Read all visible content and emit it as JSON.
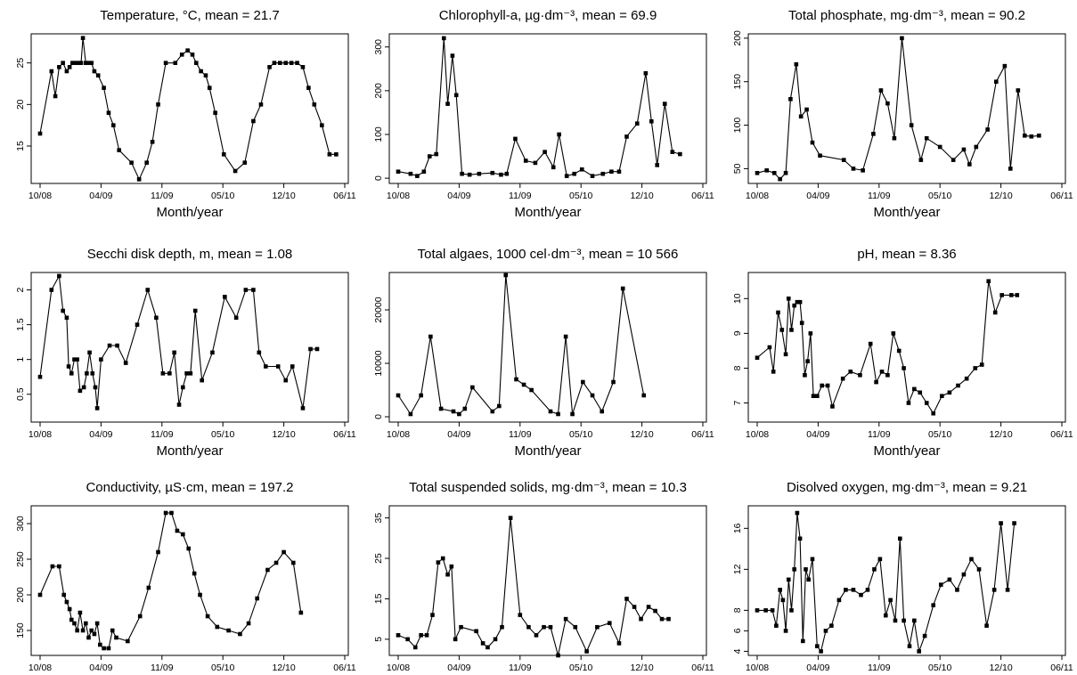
{
  "panels": [
    {
      "title": "Temperature, °C, mean = 21.7",
      "xlabel": "Month/year"
    },
    {
      "title": "Chlorophyll-a, µg·dm⁻³, mean = 69.9",
      "xlabel": "Month/year"
    },
    {
      "title": "Total phosphate, mg·dm⁻³, mean = 90.2",
      "xlabel": "Month/year"
    },
    {
      "title": "Secchi disk depth, m, mean = 1.08",
      "xlabel": "Month/year"
    },
    {
      "title": "Total algaes, 1000 cel·dm⁻³, mean = 10 566",
      "xlabel": "Month/year"
    },
    {
      "title": "pH, mean = 8.36",
      "xlabel": "Month/year"
    },
    {
      "title": "Conductivity, µS·cm, mean = 197.2",
      "xlabel": "Month/year"
    },
    {
      "title": "Total suspended solids, mg·dm⁻³, mean = 10.3",
      "xlabel": "Month/year"
    },
    {
      "title": "Disolved oxygen, mg·dm⁻³, mean = 9.21",
      "xlabel": "Month/year"
    }
  ],
  "chart_data": [
    {
      "type": "line",
      "title": "Temperature, °C, mean = 21.7",
      "xlabel": "Month/year",
      "xticks": [
        "10/08",
        "04/09",
        "11/09",
        "05/10",
        "12/10",
        "06/11"
      ],
      "yticks": [
        15,
        20,
        25
      ],
      "xlim": [
        0,
        32
      ],
      "ylim": [
        10.5,
        28.5
      ],
      "x": [
        0.0,
        1.2,
        1.6,
        2.0,
        2.4,
        2.8,
        3.1,
        3.4,
        3.7,
        4.0,
        4.3,
        4.5,
        4.8,
        5.1,
        5.4,
        5.7,
        6.1,
        6.7,
        7.2,
        7.7,
        8.3,
        9.6,
        10.4,
        11.2,
        11.8,
        12.4,
        13.2,
        14.2,
        14.9,
        15.5,
        16.0,
        16.4,
        16.9,
        17.4,
        17.8,
        18.4,
        19.3,
        20.5,
        21.5,
        22.4,
        23.2,
        24.1,
        24.6,
        25.2,
        25.8,
        26.4,
        27.0,
        27.6,
        28.2,
        28.8,
        29.6,
        30.4,
        31.1
      ],
      "y": [
        16.5,
        24,
        21,
        24.5,
        25,
        24,
        24.5,
        25,
        25,
        25,
        25,
        28,
        25,
        25,
        25,
        24,
        23.5,
        22,
        19,
        17.5,
        14.5,
        13,
        11,
        13,
        15.5,
        20,
        25,
        25,
        26,
        26.5,
        26,
        25,
        24,
        23.5,
        22,
        19,
        14,
        12,
        13,
        18,
        20,
        24.5,
        25,
        25,
        25,
        25,
        25,
        24.5,
        22,
        20,
        17.5,
        14,
        14
      ]
    },
    {
      "type": "line",
      "title": "Chlorophyll-a, µg·dm⁻³, mean = 69.9",
      "xlabel": "Month/year",
      "xticks": [
        "10/08",
        "04/09",
        "11/09",
        "05/10",
        "12/10",
        "06/11"
      ],
      "yticks": [
        0,
        100,
        200,
        300
      ],
      "xlim": [
        0,
        32
      ],
      "ylim": [
        -12,
        330
      ],
      "x": [
        0.0,
        1.3,
        2.0,
        2.7,
        3.3,
        4.0,
        4.8,
        5.2,
        5.7,
        6.1,
        6.7,
        7.5,
        8.5,
        9.9,
        10.8,
        11.4,
        12.3,
        13.4,
        14.4,
        15.4,
        16.3,
        16.9,
        17.7,
        18.5,
        19.3,
        20.4,
        21.5,
        22.4,
        23.2,
        24.0,
        25.1,
        26.0,
        26.6,
        27.2,
        28.0,
        28.8,
        29.6
      ],
      "y": [
        15,
        10,
        5,
        15,
        50,
        55,
        320,
        170,
        280,
        190,
        10,
        8,
        10,
        12,
        8,
        10,
        90,
        40,
        35,
        60,
        25,
        100,
        5,
        10,
        20,
        5,
        10,
        15,
        15,
        95,
        125,
        240,
        130,
        30,
        170,
        60,
        55
      ]
    },
    {
      "type": "line",
      "title": "Total phosphate, mg·dm⁻³, mean = 90.2",
      "xlabel": "Month/year",
      "xticks": [
        "10/08",
        "04/09",
        "11/09",
        "05/10",
        "12/10",
        "06/11"
      ],
      "yticks": [
        50,
        100,
        150,
        200
      ],
      "xlim": [
        0,
        32
      ],
      "ylim": [
        33,
        205
      ],
      "x": [
        0.0,
        1.0,
        1.8,
        2.4,
        3.0,
        3.5,
        4.1,
        4.6,
        5.2,
        5.8,
        6.6,
        9.1,
        10.1,
        11.1,
        12.2,
        13.0,
        13.7,
        14.4,
        15.2,
        16.2,
        17.2,
        17.8,
        19.2,
        20.6,
        21.7,
        22.3,
        23.0,
        24.2,
        25.1,
        26.0,
        26.6,
        27.4,
        28.1,
        28.8,
        29.6
      ],
      "y": [
        45,
        48,
        45,
        38,
        45,
        130,
        170,
        110,
        118,
        80,
        65,
        60,
        50,
        48,
        90,
        140,
        125,
        85,
        200,
        100,
        60,
        85,
        75,
        60,
        72,
        55,
        75,
        95,
        150,
        168,
        50,
        140,
        88,
        87,
        88
      ]
    },
    {
      "type": "line",
      "title": "Secchi disk depth, m, mean = 1.08",
      "xlabel": "Month/year",
      "xticks": [
        "10/08",
        "04/09",
        "11/09",
        "05/10",
        "12/10",
        "06/11"
      ],
      "yticks": [
        0.5,
        1.0,
        1.5,
        2.0
      ],
      "xlim": [
        0,
        32
      ],
      "ylim": [
        0.1,
        2.25
      ],
      "x": [
        0.0,
        1.2,
        2.0,
        2.4,
        2.8,
        3.0,
        3.3,
        3.6,
        3.9,
        4.2,
        4.6,
        4.9,
        5.2,
        5.5,
        5.8,
        6.0,
        6.4,
        7.3,
        8.1,
        9.0,
        10.2,
        11.3,
        12.2,
        12.9,
        13.6,
        14.1,
        14.6,
        15.0,
        15.4,
        15.8,
        16.3,
        17.0,
        18.1,
        19.4,
        20.6,
        21.6,
        22.4,
        23.0,
        23.7,
        25.0,
        25.8,
        26.5,
        27.6,
        28.4,
        29.1
      ],
      "y": [
        0.75,
        2.0,
        2.2,
        1.7,
        1.6,
        0.9,
        0.8,
        1.0,
        1.0,
        0.55,
        0.6,
        0.8,
        1.1,
        0.8,
        0.6,
        0.3,
        1.0,
        1.2,
        1.2,
        0.95,
        1.5,
        2.0,
        1.6,
        0.8,
        0.8,
        1.1,
        0.35,
        0.6,
        0.8,
        0.8,
        1.7,
        0.7,
        1.1,
        1.9,
        1.6,
        2.0,
        2.0,
        1.1,
        0.9,
        0.9,
        0.7,
        0.9,
        0.3,
        1.15,
        1.15
      ]
    },
    {
      "type": "line",
      "title": "Total algaes, 1000 cel·dm⁻³, mean = 10 566",
      "xlabel": "Month/year",
      "xticks": [
        "10/08",
        "04/09",
        "11/09",
        "05/10",
        "12/10",
        "06/11"
      ],
      "yticks": [
        0,
        10000,
        20000
      ],
      "xlim": [
        0,
        32
      ],
      "ylim": [
        -1000,
        27000
      ],
      "x": [
        0.0,
        1.3,
        2.4,
        3.4,
        4.5,
        5.8,
        6.4,
        7.0,
        7.8,
        9.9,
        10.6,
        11.3,
        12.4,
        13.2,
        14.0,
        16.0,
        16.8,
        17.6,
        18.3,
        19.4,
        20.4,
        21.4,
        22.6,
        23.6,
        25.8
      ],
      "y": [
        4000,
        500,
        4000,
        15000,
        1500,
        1000,
        500,
        1500,
        5500,
        1000,
        2000,
        26500,
        7000,
        6000,
        5000,
        1000,
        500,
        15000,
        500,
        6500,
        4000,
        1000,
        6500,
        24000,
        4000
      ]
    },
    {
      "type": "line",
      "title": "pH, mean = 8.36",
      "xlabel": "Month/year",
      "xticks": [
        "10/08",
        "04/09",
        "11/09",
        "05/10",
        "12/10",
        "06/11"
      ],
      "yticks": [
        7,
        8,
        9,
        10
      ],
      "xlim": [
        0,
        32
      ],
      "ylim": [
        6.45,
        10.75
      ],
      "x": [
        0.0,
        1.3,
        1.7,
        2.2,
        2.6,
        3.0,
        3.3,
        3.6,
        3.9,
        4.2,
        4.5,
        4.7,
        5.0,
        5.3,
        5.6,
        5.9,
        6.3,
        6.8,
        7.4,
        7.9,
        9.0,
        9.8,
        10.8,
        11.9,
        12.5,
        13.1,
        13.7,
        14.3,
        14.9,
        15.4,
        15.9,
        16.5,
        17.1,
        17.8,
        18.5,
        19.4,
        20.2,
        21.1,
        22.0,
        22.9,
        23.6,
        24.3,
        25.0,
        25.7,
        26.7,
        27.3
      ],
      "y": [
        8.3,
        8.6,
        7.9,
        9.6,
        9.1,
        8.4,
        10.0,
        9.1,
        9.8,
        9.9,
        9.9,
        9.3,
        7.8,
        8.2,
        9.0,
        7.2,
        7.2,
        7.5,
        7.5,
        6.9,
        7.7,
        7.9,
        7.8,
        8.7,
        7.6,
        7.9,
        7.8,
        9.0,
        8.5,
        8.0,
        7.0,
        7.4,
        7.3,
        7.0,
        6.7,
        7.2,
        7.3,
        7.5,
        7.7,
        8.0,
        8.1,
        10.5,
        9.6,
        10.1,
        10.1,
        10.1
      ]
    },
    {
      "type": "line",
      "title": "Conductivity, µS·cm, mean = 197.2",
      "xlabel": "Month/year",
      "xticks": [
        "10/08",
        "04/09",
        "11/09",
        "05/10",
        "12/10",
        "06/11"
      ],
      "yticks": [
        150,
        200,
        250,
        300
      ],
      "xlim": [
        0,
        32
      ],
      "ylim": [
        115,
        325
      ],
      "x": [
        0.0,
        1.3,
        2.0,
        2.5,
        2.8,
        3.1,
        3.3,
        3.6,
        3.9,
        4.2,
        4.5,
        4.8,
        5.1,
        5.4,
        5.7,
        6.0,
        6.3,
        6.7,
        7.2,
        7.6,
        8.0,
        9.2,
        10.5,
        11.4,
        12.4,
        13.2,
        13.8,
        14.4,
        15.0,
        15.6,
        16.2,
        16.8,
        17.6,
        18.6,
        19.8,
        21.0,
        21.9,
        22.8,
        23.9,
        24.8,
        25.6,
        26.6,
        27.4
      ],
      "y": [
        200,
        240,
        240,
        200,
        190,
        180,
        165,
        160,
        150,
        175,
        150,
        160,
        140,
        150,
        145,
        160,
        130,
        125,
        125,
        150,
        140,
        135,
        170,
        210,
        260,
        315,
        315,
        290,
        285,
        265,
        230,
        200,
        170,
        155,
        150,
        145,
        160,
        195,
        235,
        245,
        260,
        245,
        175
      ]
    },
    {
      "type": "line",
      "title": "Total suspended solids, mg·dm⁻³, mean = 10.3",
      "xlabel": "Month/year",
      "xticks": [
        "10/08",
        "04/09",
        "11/09",
        "05/10",
        "12/10",
        "06/11"
      ],
      "yticks": [
        5,
        15,
        25,
        35
      ],
      "xlim": [
        0,
        32
      ],
      "ylim": [
        1,
        38
      ],
      "x": [
        0.0,
        1.0,
        1.8,
        2.4,
        3.0,
        3.6,
        4.2,
        4.7,
        5.2,
        5.6,
        6.0,
        6.6,
        8.2,
        8.9,
        9.4,
        10.2,
        10.9,
        11.8,
        12.8,
        13.7,
        14.5,
        15.3,
        16.0,
        16.8,
        17.6,
        18.6,
        19.8,
        20.9,
        22.2,
        23.2,
        24.0,
        24.8,
        25.5,
        26.3,
        27.0,
        27.7,
        28.4
      ],
      "y": [
        6,
        5,
        3,
        6,
        6,
        11,
        24,
        25,
        21,
        23,
        5,
        8,
        7,
        4,
        3,
        5,
        8,
        35,
        11,
        8,
        6,
        8,
        8,
        1,
        10,
        8,
        2,
        8,
        9,
        4,
        15,
        13,
        10,
        13,
        12,
        10,
        10
      ]
    },
    {
      "type": "line",
      "title": "Disolved oxygen, mg·dm⁻³, mean = 9.21",
      "xlabel": "Month/year",
      "xticks": [
        "10/08",
        "04/09",
        "11/09",
        "05/10",
        "12/10",
        "06/11"
      ],
      "yticks": [
        4,
        6,
        8,
        12,
        16
      ],
      "xlim": [
        0,
        32
      ],
      "ylim": [
        3.6,
        18.2
      ],
      "x": [
        0.0,
        0.9,
        1.6,
        2.0,
        2.4,
        2.7,
        3.0,
        3.3,
        3.6,
        3.9,
        4.2,
        4.5,
        4.8,
        5.1,
        5.4,
        5.8,
        6.3,
        6.7,
        7.2,
        7.8,
        8.6,
        9.3,
        10.1,
        10.9,
        11.6,
        12.3,
        12.9,
        13.5,
        14.0,
        14.5,
        15.0,
        15.4,
        16.0,
        16.5,
        17.0,
        17.6,
        18.5,
        19.3,
        20.2,
        21.0,
        21.7,
        22.5,
        23.3,
        24.1,
        24.9,
        25.6,
        26.3,
        27.0
      ],
      "y": [
        8,
        8,
        8,
        6.5,
        10,
        9,
        6,
        11,
        8,
        12,
        17.5,
        15,
        5,
        12,
        11,
        13,
        4.5,
        4,
        6,
        6.5,
        9,
        10,
        10,
        9.5,
        10,
        12,
        13,
        7.5,
        9,
        7,
        15,
        7,
        4.5,
        7,
        4,
        5.5,
        8.5,
        10.5,
        11,
        10,
        11.5,
        13,
        12,
        6.5,
        10,
        16.5,
        10,
        16.5
      ]
    }
  ]
}
